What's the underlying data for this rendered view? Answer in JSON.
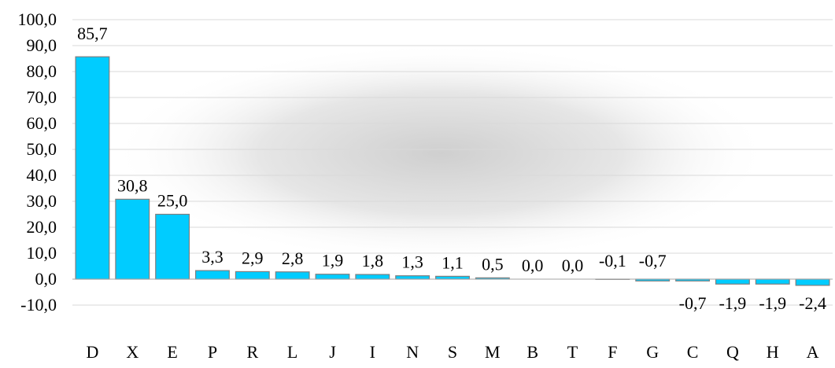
{
  "chart_data": {
    "type": "bar",
    "categories": [
      "D",
      "X",
      "E",
      "P",
      "R",
      "L",
      "J",
      "I",
      "N",
      "S",
      "M",
      "B",
      "T",
      "F",
      "G",
      "C",
      "Q",
      "H",
      "A"
    ],
    "values": [
      85.7,
      30.8,
      25.0,
      3.3,
      2.9,
      2.8,
      1.9,
      1.8,
      1.3,
      1.1,
      0.5,
      0.0,
      0.0,
      -0.1,
      -0.7,
      -0.7,
      -1.9,
      -1.9,
      -2.4
    ],
    "data_labels": [
      "85,7",
      "30,8",
      "25,0",
      "3,3",
      "2,9",
      "2,8",
      "1,9",
      "1,8",
      "1,3",
      "1,1",
      "0,5",
      "0,0",
      "0,0",
      "-0,1",
      "-0,7",
      "-0,7",
      "-1,9",
      "-1,9",
      "-2,4"
    ],
    "yticks": [
      -10,
      0,
      10,
      20,
      30,
      40,
      50,
      60,
      70,
      80,
      90,
      100
    ],
    "ytick_labels": [
      "-10,0",
      "0,0",
      "10,0",
      "20,0",
      "30,0",
      "40,0",
      "50,0",
      "60,0",
      "70,0",
      "80,0",
      "90,0",
      "100,0"
    ],
    "ylim": [
      -10,
      100
    ],
    "title": "",
    "xlabel": "",
    "ylabel": "",
    "grid": true,
    "legend": "none",
    "bar_color": "#00ccff",
    "bar_edge_color": "#7f7f7f"
  }
}
